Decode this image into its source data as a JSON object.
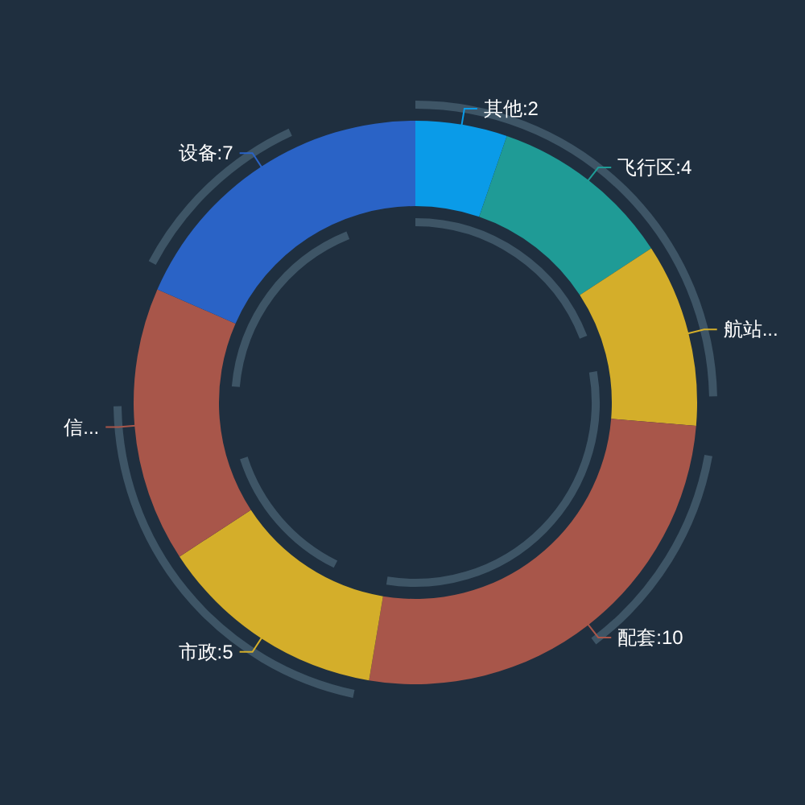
{
  "chart_data": {
    "type": "donut",
    "categories": [
      "其他",
      "飞行区",
      "航站...",
      "配套",
      "市政",
      "信...",
      "设备"
    ],
    "values": [
      2,
      4,
      4,
      10,
      5,
      6,
      7
    ],
    "value_labels": [
      "2",
      "4",
      null,
      "10",
      "5",
      null,
      "7"
    ],
    "colors": [
      "#0a9be8",
      "#1f9b96",
      "#d4ae2a",
      "#a8564a",
      "#d4ae2a",
      "#a8564a",
      "#2a63c6"
    ]
  }
}
